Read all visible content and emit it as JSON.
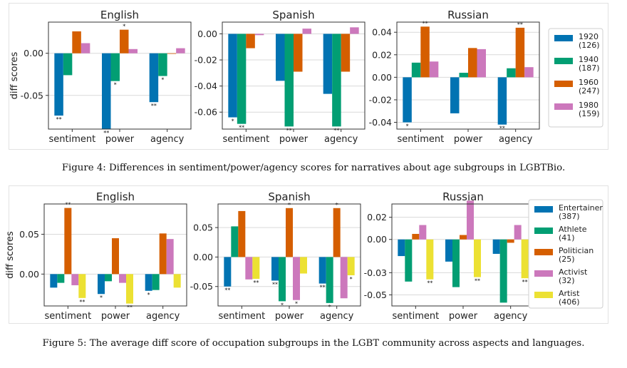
{
  "figures": [
    {
      "caption": "Figure 4: Differences in sentiment/power/agency scores for narratives about age subgroups in LGBTBio.",
      "series": [
        {
          "name": "1920\n(126)",
          "color": "#0173b2"
        },
        {
          "name": "1940\n(187)",
          "color": "#029e73"
        },
        {
          "name": "1960\n(247)",
          "color": "#d55e00"
        },
        {
          "name": "1980\n(159)",
          "color": "#cc78bc"
        }
      ]
    },
    {
      "caption": "Figure 5: The average diff score of occupation subgroups in the LGBT community across aspects and languages.",
      "series": [
        {
          "name": "Entertainer\n(387)",
          "color": "#0173b2"
        },
        {
          "name": "Athlete\n(41)",
          "color": "#029e73"
        },
        {
          "name": "Politician\n(25)",
          "color": "#d55e00"
        },
        {
          "name": "Activist\n(32)",
          "color": "#cc78bc"
        },
        {
          "name": "Artist\n(406)",
          "color": "#ece133"
        }
      ]
    }
  ],
  "chart_data": [
    {
      "figure": 0,
      "type": "bar",
      "title": "English",
      "ylabel": "diff scores",
      "categories": [
        "sentiment",
        "power",
        "agency"
      ],
      "ylim": [
        -0.09,
        0.037
      ],
      "yticks": [
        0.0,
        -0.05
      ],
      "ytick_labels": [
        "0.00",
        "-0.05"
      ],
      "series": [
        {
          "name": "1920 (126)",
          "values": [
            -0.074,
            -0.09,
            -0.058
          ],
          "sig": [
            "**",
            "**",
            "**"
          ]
        },
        {
          "name": "1940 (187)",
          "values": [
            -0.026,
            -0.033,
            -0.027
          ],
          "sig": [
            "",
            "*",
            "*"
          ]
        },
        {
          "name": "1960 (247)",
          "values": [
            0.026,
            0.028,
            0.0
          ],
          "sig": [
            "",
            "*",
            ""
          ]
        },
        {
          "name": "1980 (159)",
          "values": [
            0.012,
            0.005,
            0.006
          ],
          "sig": [
            "",
            "",
            ""
          ]
        }
      ]
    },
    {
      "figure": 0,
      "type": "bar",
      "title": "Spanish",
      "ylabel": "",
      "categories": [
        "sentiment",
        "power",
        "agency"
      ],
      "ylim": [
        -0.073,
        0.009
      ],
      "yticks": [
        0.0,
        -0.02,
        -0.04,
        -0.06
      ],
      "ytick_labels": [
        "0.00",
        "-0.02",
        "-0.04",
        "-0.06"
      ],
      "series": [
        {
          "name": "1920 (126)",
          "values": [
            -0.064,
            -0.036,
            -0.046
          ],
          "sig": [
            "*",
            "",
            ""
          ]
        },
        {
          "name": "1940 (187)",
          "values": [
            -0.069,
            -0.071,
            -0.071
          ],
          "sig": [
            "**",
            "**",
            "**"
          ]
        },
        {
          "name": "1960 (247)",
          "values": [
            -0.011,
            -0.029,
            -0.029
          ],
          "sig": [
            "",
            "",
            ""
          ]
        },
        {
          "name": "1980 (159)",
          "values": [
            -0.001,
            0.004,
            0.005
          ],
          "sig": [
            "",
            "",
            ""
          ]
        }
      ]
    },
    {
      "figure": 0,
      "type": "bar",
      "title": "Russian",
      "ylabel": "",
      "categories": [
        "sentiment",
        "power",
        "agency"
      ],
      "ylim": [
        -0.046,
        0.049
      ],
      "yticks": [
        0.04,
        0.02,
        0.0,
        -0.02,
        -0.04
      ],
      "ytick_labels": [
        "0.04",
        "0.02",
        "0.00",
        "-0.02",
        "-0.04"
      ],
      "series": [
        {
          "name": "1920 (126)",
          "values": [
            -0.04,
            -0.032,
            -0.042
          ],
          "sig": [
            "*",
            "",
            "**"
          ]
        },
        {
          "name": "1940 (187)",
          "values": [
            0.013,
            0.004,
            0.008
          ],
          "sig": [
            "",
            "",
            ""
          ]
        },
        {
          "name": "1960 (247)",
          "values": [
            0.045,
            0.026,
            0.044
          ],
          "sig": [
            "**",
            "",
            "**"
          ]
        },
        {
          "name": "1980 (159)",
          "values": [
            0.014,
            0.025,
            0.009
          ],
          "sig": [
            "",
            "",
            ""
          ]
        }
      ]
    },
    {
      "figure": 1,
      "type": "bar",
      "title": "English",
      "ylabel": "diff scores",
      "categories": [
        "sentiment",
        "power",
        "agency"
      ],
      "ylim": [
        -0.04,
        0.088
      ],
      "yticks": [
        0.05,
        0.0
      ],
      "ytick_labels": [
        "0.05",
        "0.00"
      ],
      "series": [
        {
          "name": "Entertainer (387)",
          "values": [
            -0.017,
            -0.025,
            -0.021
          ],
          "sig": [
            "",
            "*",
            "*"
          ]
        },
        {
          "name": "Athlete (41)",
          "values": [
            -0.011,
            -0.009,
            -0.02
          ],
          "sig": [
            "",
            "",
            ""
          ]
        },
        {
          "name": "Politician (25)",
          "values": [
            0.083,
            0.045,
            0.051
          ],
          "sig": [
            "**",
            "",
            ""
          ]
        },
        {
          "name": "Activist (32)",
          "values": [
            -0.014,
            -0.011,
            0.044
          ],
          "sig": [
            "",
            "",
            ""
          ]
        },
        {
          "name": "Artist (406)",
          "values": [
            -0.03,
            -0.037,
            -0.017
          ],
          "sig": [
            "**",
            "**",
            ""
          ]
        }
      ]
    },
    {
      "figure": 1,
      "type": "bar",
      "title": "Spanish",
      "ylabel": "",
      "categories": [
        "sentiment",
        "power",
        "agency"
      ],
      "ylim": [
        -0.083,
        0.09
      ],
      "yticks": [
        0.05,
        0.0,
        -0.05
      ],
      "ytick_labels": [
        "0.05",
        "0.00",
        "-0.05"
      ],
      "series": [
        {
          "name": "Entertainer (387)",
          "values": [
            -0.05,
            -0.04,
            -0.045
          ],
          "sig": [
            "**",
            "**",
            "**"
          ]
        },
        {
          "name": "Athlete (41)",
          "values": [
            0.052,
            -0.075,
            -0.078
          ],
          "sig": [
            "",
            "*",
            "*"
          ]
        },
        {
          "name": "Politician (25)",
          "values": [
            0.078,
            0.083,
            0.083
          ],
          "sig": [
            "",
            "*",
            "*"
          ]
        },
        {
          "name": "Activist (32)",
          "values": [
            -0.038,
            -0.073,
            -0.07
          ],
          "sig": [
            "",
            "*",
            ""
          ]
        },
        {
          "name": "Artist (406)",
          "values": [
            -0.037,
            -0.028,
            -0.031
          ],
          "sig": [
            "**",
            "",
            "*"
          ]
        }
      ]
    },
    {
      "figure": 1,
      "type": "bar",
      "title": "Russian",
      "ylabel": "",
      "categories": [
        "sentiment",
        "power",
        "agency"
      ],
      "ylim": [
        -0.06,
        0.032
      ],
      "yticks": [
        0.02,
        0.0,
        -0.03,
        -0.05
      ],
      "ytick_labels": [
        "0.02",
        "0.00",
        "-0.03",
        "-0.05"
      ],
      "series": [
        {
          "name": "Entertainer (387)",
          "values": [
            -0.015,
            -0.02,
            -0.013
          ],
          "sig": [
            "",
            "",
            ""
          ]
        },
        {
          "name": "Athlete (41)",
          "values": [
            -0.038,
            -0.043,
            -0.057
          ],
          "sig": [
            "",
            "",
            ""
          ]
        },
        {
          "name": "Politician (25)",
          "values": [
            0.005,
            0.004,
            -0.003
          ],
          "sig": [
            "",
            "",
            ""
          ]
        },
        {
          "name": "Activist (32)",
          "values": [
            0.013,
            0.035,
            0.013
          ],
          "sig": [
            "",
            "",
            ""
          ]
        },
        {
          "name": "Artist (406)",
          "values": [
            -0.036,
            -0.034,
            -0.035
          ],
          "sig": [
            "**",
            "**",
            "**"
          ]
        }
      ]
    }
  ]
}
